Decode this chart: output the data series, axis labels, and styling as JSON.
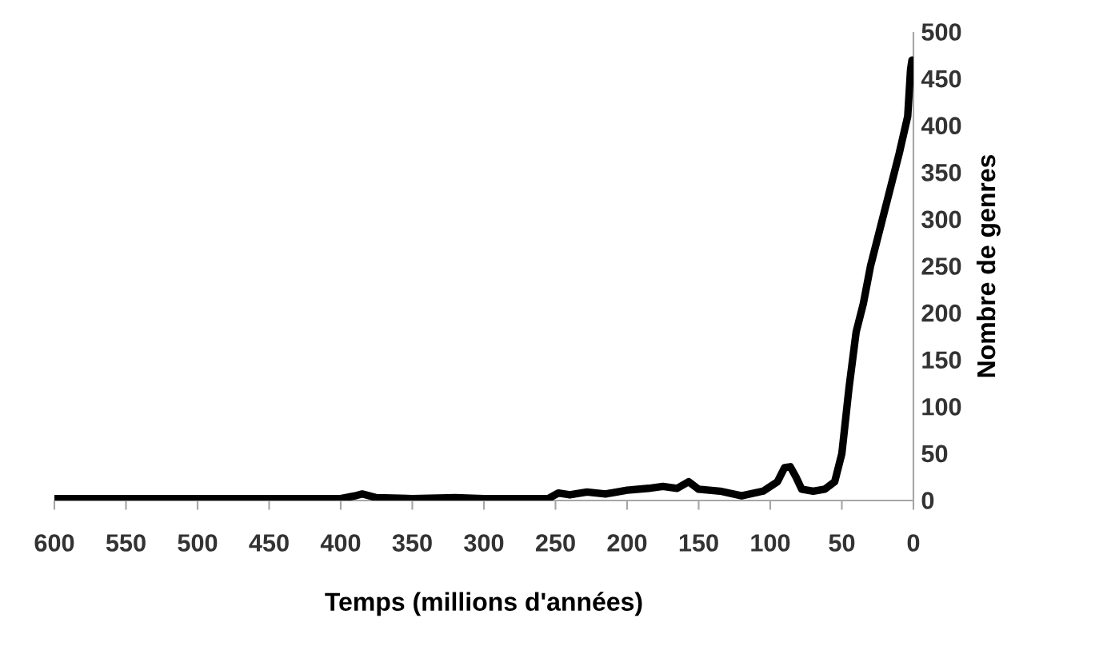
{
  "chart_data": {
    "type": "line",
    "xlabel": "Temps (millions d'années)",
    "ylabel": "Nombre de genres",
    "xlim": [
      600,
      0
    ],
    "ylim": [
      0,
      500
    ],
    "xticks": [
      600,
      550,
      500,
      450,
      400,
      350,
      300,
      250,
      200,
      150,
      100,
      50,
      0
    ],
    "yticks": [
      0,
      50,
      100,
      150,
      200,
      250,
      300,
      350,
      400,
      450,
      500
    ],
    "grid": false,
    "marker": "none",
    "line_style": "solid",
    "series": [
      {
        "color": "#000000",
        "x": [
          600,
          400,
          390,
          385,
          375,
          350,
          320,
          300,
          255,
          248,
          240,
          228,
          215,
          200,
          185,
          175,
          165,
          157,
          150,
          135,
          120,
          105,
          95,
          90,
          86,
          82,
          78,
          70,
          62,
          55,
          50,
          45,
          40,
          35,
          30,
          20,
          10,
          4,
          2,
          1
        ],
        "values": [
          2,
          2,
          5,
          7,
          3,
          2,
          3,
          2,
          2,
          8,
          6,
          9,
          7,
          11,
          13,
          15,
          13,
          20,
          12,
          10,
          5,
          10,
          20,
          35,
          36,
          25,
          12,
          10,
          12,
          20,
          50,
          120,
          180,
          210,
          250,
          310,
          370,
          410,
          460,
          470
        ]
      }
    ]
  }
}
